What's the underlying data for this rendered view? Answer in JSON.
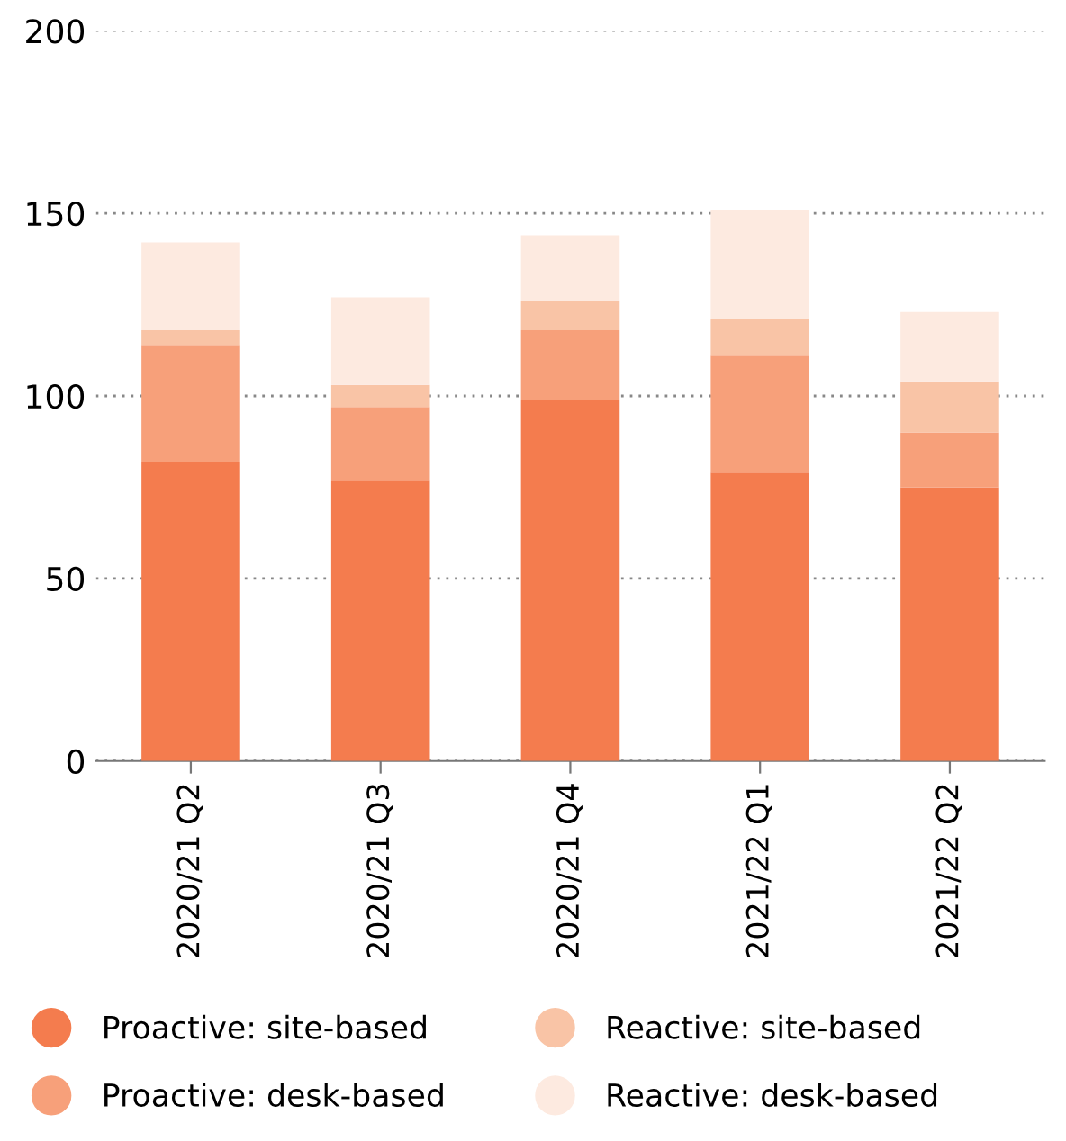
{
  "chart_data": {
    "type": "bar",
    "stacked": true,
    "categories": [
      "2020/21 Q2",
      "2020/21 Q3",
      "2020/21 Q4",
      "2021/22 Q1",
      "2021/22 Q2"
    ],
    "series": [
      {
        "name": "Proactive: site-based",
        "color": "#f47c4e",
        "values": [
          82,
          77,
          99,
          79,
          75
        ]
      },
      {
        "name": "Proactive: desk-based",
        "color": "#f7a07a",
        "values": [
          32,
          20,
          19,
          32,
          15
        ]
      },
      {
        "name": "Reactive: site-based",
        "color": "#f9c4a6",
        "values": [
          4,
          6,
          8,
          10,
          14
        ]
      },
      {
        "name": "Reactive: desk-based",
        "color": "#fdeae0",
        "values": [
          24,
          24,
          18,
          30,
          19
        ]
      }
    ],
    "ylim": [
      0,
      200
    ],
    "yticks": [
      0,
      50,
      100,
      150,
      200
    ],
    "grid": "y",
    "legend": "bottom"
  }
}
